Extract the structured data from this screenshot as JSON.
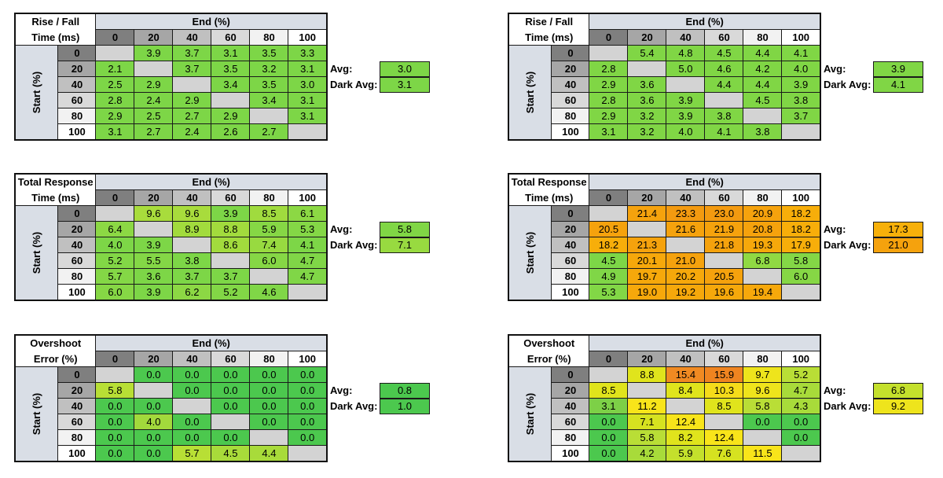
{
  "labels": {
    "end_header": "End (%)",
    "start_header": "Start (%)",
    "avg": "Avg:",
    "dark_avg": "Dark Avg:"
  },
  "levels": [
    "0",
    "20",
    "40",
    "60",
    "80",
    "100"
  ],
  "level_colors": [
    "#7f7f7f",
    "#a6a6a6",
    "#c0c0c0",
    "#d9d9d9",
    "#f2f2f2",
    "#ffffff"
  ],
  "tables": [
    {
      "title1": "Rise / Fall",
      "title2": "Time (ms)",
      "cells": [
        [
          "",
          "3.9",
          "3.7",
          "3.1",
          "3.5",
          "3.3"
        ],
        [
          "2.1",
          "",
          "3.7",
          "3.5",
          "3.2",
          "3.1"
        ],
        [
          "2.5",
          "2.9",
          "",
          "3.4",
          "3.5",
          "3.0"
        ],
        [
          "2.8",
          "2.4",
          "2.9",
          "",
          "3.4",
          "3.1"
        ],
        [
          "2.9",
          "2.5",
          "2.7",
          "2.9",
          "",
          "3.1"
        ],
        [
          "3.1",
          "2.7",
          "2.4",
          "2.6",
          "2.7",
          ""
        ]
      ],
      "colors": [
        [
          "",
          "#7dd647",
          "#7dd647",
          "#7dd647",
          "#7dd647",
          "#7dd647"
        ],
        [
          "#7dd647",
          "",
          "#7dd647",
          "#7dd647",
          "#7dd647",
          "#7dd647"
        ],
        [
          "#7dd647",
          "#7dd647",
          "",
          "#7dd647",
          "#7dd647",
          "#7dd647"
        ],
        [
          "#7dd647",
          "#7dd647",
          "#7dd647",
          "",
          "#7dd647",
          "#7dd647"
        ],
        [
          "#7dd647",
          "#7dd647",
          "#7dd647",
          "#7dd647",
          "",
          "#7dd647"
        ],
        [
          "#7dd647",
          "#7dd647",
          "#7dd647",
          "#7dd647",
          "#7dd647",
          ""
        ]
      ],
      "avg": "3.0",
      "avg_color": "#7dd647",
      "dark_avg": "3.1",
      "dark_avg_color": "#7dd647"
    },
    {
      "title1": "Rise / Fall",
      "title2": "Time (ms)",
      "cells": [
        [
          "",
          "5.4",
          "4.8",
          "4.5",
          "4.4",
          "4.1"
        ],
        [
          "2.8",
          "",
          "5.0",
          "4.6",
          "4.2",
          "4.0"
        ],
        [
          "2.9",
          "3.6",
          "",
          "4.4",
          "4.4",
          "3.9"
        ],
        [
          "2.8",
          "3.6",
          "3.9",
          "",
          "4.5",
          "3.8"
        ],
        [
          "2.9",
          "3.2",
          "3.9",
          "3.8",
          "",
          "3.7"
        ],
        [
          "3.1",
          "3.2",
          "4.0",
          "4.1",
          "3.8",
          ""
        ]
      ],
      "colors": [
        [
          "",
          "#80d645",
          "#80d645",
          "#80d645",
          "#80d645",
          "#80d645"
        ],
        [
          "#80d645",
          "",
          "#80d645",
          "#80d645",
          "#80d645",
          "#80d645"
        ],
        [
          "#80d645",
          "#80d645",
          "",
          "#80d645",
          "#80d645",
          "#80d645"
        ],
        [
          "#80d645",
          "#80d645",
          "#80d645",
          "",
          "#80d645",
          "#80d645"
        ],
        [
          "#80d645",
          "#80d645",
          "#80d645",
          "#80d645",
          "",
          "#80d645"
        ],
        [
          "#80d645",
          "#80d645",
          "#80d645",
          "#80d645",
          "#80d645",
          ""
        ]
      ],
      "avg": "3.9",
      "avg_color": "#80d645",
      "dark_avg": "4.1",
      "dark_avg_color": "#80d645"
    },
    {
      "title1": "Total Response",
      "title2": "Time (ms)",
      "cells": [
        [
          "",
          "9.6",
          "9.6",
          "3.9",
          "8.5",
          "6.1"
        ],
        [
          "6.4",
          "",
          "8.9",
          "8.8",
          "5.9",
          "5.3"
        ],
        [
          "4.0",
          "3.9",
          "",
          "8.6",
          "7.4",
          "4.1"
        ],
        [
          "5.2",
          "5.5",
          "3.8",
          "",
          "6.0",
          "4.7"
        ],
        [
          "5.7",
          "3.6",
          "3.7",
          "3.7",
          "",
          "4.7"
        ],
        [
          "6.0",
          "3.9",
          "6.2",
          "5.2",
          "4.6",
          ""
        ]
      ],
      "colors": [
        [
          "",
          "#a8dc3c",
          "#a8dc3c",
          "#7dd647",
          "#a0db3e",
          "#8cd844"
        ],
        [
          "#8cd844",
          "",
          "#a2db3d",
          "#a2db3d",
          "#86d745",
          "#84d746"
        ],
        [
          "#7dd647",
          "#7dd647",
          "",
          "#a2db3d",
          "#98da40",
          "#7dd647"
        ],
        [
          "#82d746",
          "#84d746",
          "#7dd647",
          "",
          "#86d745",
          "#80d647"
        ],
        [
          "#84d746",
          "#7dd647",
          "#7dd647",
          "#7dd647",
          "",
          "#80d647"
        ],
        [
          "#86d745",
          "#7dd647",
          "#8cd844",
          "#82d746",
          "#80d647",
          ""
        ]
      ],
      "avg": "5.8",
      "avg_color": "#80d645",
      "dark_avg": "7.1",
      "dark_avg_color": "#98da40"
    },
    {
      "title1": "Total Response",
      "title2": "Time (ms)",
      "cells": [
        [
          "",
          "21.4",
          "23.3",
          "23.0",
          "20.9",
          "18.2"
        ],
        [
          "20.5",
          "",
          "21.6",
          "21.9",
          "20.8",
          "18.2"
        ],
        [
          "18.2",
          "21.3",
          "",
          "21.8",
          "19.3",
          "17.9"
        ],
        [
          "4.5",
          "20.1",
          "21.0",
          "",
          "6.8",
          "5.8"
        ],
        [
          "4.9",
          "19.7",
          "20.2",
          "20.5",
          "",
          "6.0"
        ],
        [
          "5.3",
          "19.0",
          "19.2",
          "19.6",
          "19.4",
          ""
        ]
      ],
      "colors": [
        [
          "",
          "#f5a20d",
          "#f39a10",
          "#f39a10",
          "#f5a20d",
          "#f7ae0a"
        ],
        [
          "#f5a20d",
          "",
          "#f5a20d",
          "#f5a20d",
          "#f5a20d",
          "#f7ae0a"
        ],
        [
          "#f7ae0a",
          "#f5a20d",
          "",
          "#f5a20d",
          "#f6a80b",
          "#f7ae0a"
        ],
        [
          "#7dd647",
          "#f6a80b",
          "#f5a20d",
          "",
          "#90d943",
          "#84d746"
        ],
        [
          "#80d647",
          "#f6a80b",
          "#f6a80b",
          "#f5a20d",
          "",
          "#86d745"
        ],
        [
          "#82d746",
          "#f6a80b",
          "#f6a80b",
          "#f6a80b",
          "#f6a80b",
          ""
        ]
      ],
      "avg": "17.3",
      "avg_color": "#f7b00a",
      "dark_avg": "21.0",
      "dark_avg_color": "#f5a20d"
    },
    {
      "title1": "Overshoot",
      "title2": "Error (%)",
      "cells": [
        [
          "",
          "0.0",
          "0.0",
          "0.0",
          "0.0",
          "0.0"
        ],
        [
          "5.8",
          "",
          "0.0",
          "0.0",
          "0.0",
          "0.0"
        ],
        [
          "0.0",
          "0.0",
          "",
          "0.0",
          "0.0",
          "0.0"
        ],
        [
          "0.0",
          "4.0",
          "0.0",
          "",
          "0.0",
          "0.0"
        ],
        [
          "0.0",
          "0.0",
          "0.0",
          "0.0",
          "",
          "0.0"
        ],
        [
          "0.0",
          "0.0",
          "5.7",
          "4.5",
          "4.4",
          ""
        ]
      ],
      "colors": [
        [
          "",
          "#4cc84e",
          "#4cc84e",
          "#4cc84e",
          "#4cc84e",
          "#4cc84e"
        ],
        [
          "#b8df35",
          "",
          "#4cc84e",
          "#4cc84e",
          "#4cc84e",
          "#4cc84e"
        ],
        [
          "#4cc84e",
          "#4cc84e",
          "",
          "#4cc84e",
          "#4cc84e",
          "#4cc84e"
        ],
        [
          "#4cc84e",
          "#a2d93c",
          "#4cc84e",
          "",
          "#4cc84e",
          "#4cc84e"
        ],
        [
          "#4cc84e",
          "#4cc84e",
          "#4cc84e",
          "#4cc84e",
          "",
          "#4cc84e"
        ],
        [
          "#4cc84e",
          "#4cc84e",
          "#b8df35",
          "#a8db3a",
          "#a8db3a",
          ""
        ]
      ],
      "avg": "0.8",
      "avg_color": "#4cc84e",
      "dark_avg": "1.0",
      "dark_avg_color": "#4cc84e"
    },
    {
      "title1": "Overshoot",
      "title2": "Error (%)",
      "cells": [
        [
          "",
          "8.8",
          "15.4",
          "15.9",
          "9.7",
          "5.2"
        ],
        [
          "8.5",
          "",
          "8.4",
          "10.3",
          "9.6",
          "4.7"
        ],
        [
          "3.1",
          "11.2",
          "",
          "8.5",
          "5.8",
          "4.3"
        ],
        [
          "0.0",
          "7.1",
          "12.4",
          "",
          "0.0",
          "0.0"
        ],
        [
          "0.0",
          "5.8",
          "8.2",
          "12.4",
          "",
          "0.0"
        ],
        [
          "0.0",
          "4.2",
          "5.9",
          "7.6",
          "11.5",
          ""
        ]
      ],
      "colors": [
        [
          "",
          "#e0e41c",
          "#f08a22",
          "#ef8420",
          "#eee41c",
          "#b9de36"
        ],
        [
          "#e0e41c",
          "",
          "#e0e41c",
          "#f5dc1a",
          "#eee41c",
          "#a8db3a"
        ],
        [
          "#7dd047",
          "#f8e41a",
          "",
          "#e0e41c",
          "#b9de36",
          "#a8db3a"
        ],
        [
          "#4cc84e",
          "#d6e220",
          "#f8e41a",
          "",
          "#4cc84e",
          "#4cc84e"
        ],
        [
          "#4cc84e",
          "#b9de36",
          "#e0e41c",
          "#f8e41a",
          "",
          "#4cc84e"
        ],
        [
          "#4cc84e",
          "#a8db3a",
          "#c4e02c",
          "#d6e220",
          "#f8e41a",
          ""
        ]
      ],
      "avg": "6.8",
      "avg_color": "#c4e02c",
      "dark_avg": "9.2",
      "dark_avg_color": "#eee41c"
    }
  ]
}
